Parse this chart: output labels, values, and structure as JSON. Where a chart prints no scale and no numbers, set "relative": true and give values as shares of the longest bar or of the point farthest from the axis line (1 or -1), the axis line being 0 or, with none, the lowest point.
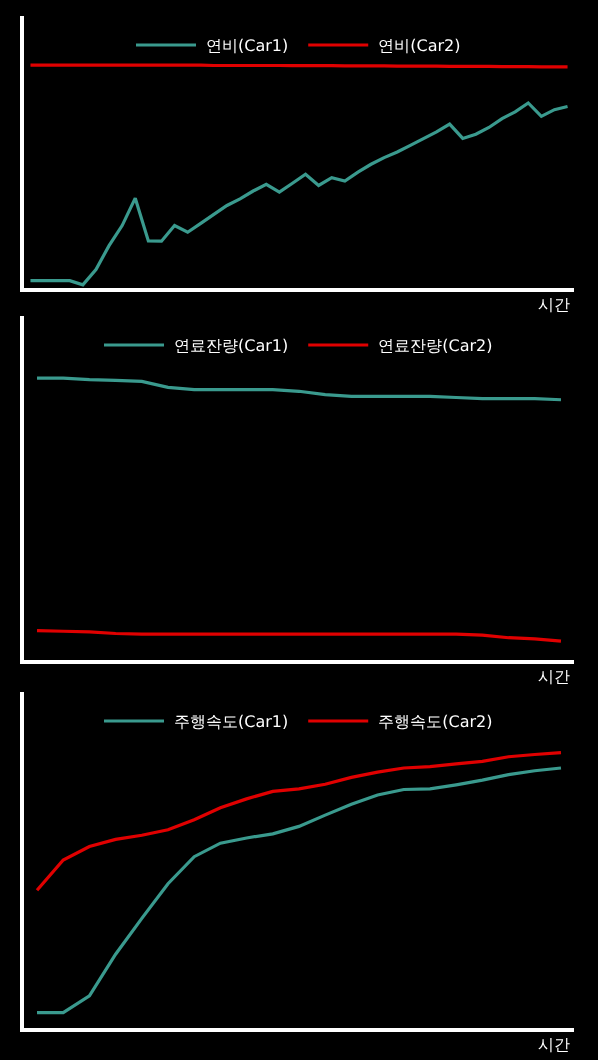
{
  "chart_data": [
    {
      "type": "line",
      "relative": true,
      "xlabel": "시간",
      "legend": "top",
      "grid": false,
      "marker": "none",
      "line_style": "solid",
      "categories": [
        null,
        null,
        null,
        null,
        null,
        null,
        null,
        null,
        null,
        null,
        null,
        null,
        null,
        null,
        null,
        null,
        null,
        null,
        null,
        null,
        null,
        null,
        null,
        null,
        null,
        null,
        null,
        null,
        null,
        null,
        null,
        null,
        null,
        null,
        null,
        null,
        null,
        null,
        null,
        null,
        null,
        null
      ],
      "series": [
        {
          "name": "연비(Car1)",
          "color": "#3a9a8e",
          "values": [
            0.033,
            0.033,
            0.033,
            0.033,
            0.014,
            0.083,
            0.19,
            0.28,
            0.403,
            0.211,
            0.21,
            0.28,
            0.25,
            0.29,
            0.33,
            0.37,
            0.4,
            0.435,
            0.465,
            0.43,
            0.47,
            0.51,
            0.46,
            0.495,
            0.48,
            0.52,
            0.555,
            0.585,
            0.61,
            0.64,
            0.67,
            0.7,
            0.735,
            0.671,
            0.69,
            0.72,
            0.76,
            0.79,
            0.83,
            0.77,
            0.8,
            0.814
          ]
        },
        {
          "name": "연비(Car2)",
          "color": "#e00000",
          "values": [
            1.0,
            1.0,
            1.0,
            1.0,
            1.0,
            1.0,
            1.0,
            1.0,
            1.0,
            1.0,
            1.0,
            1.0,
            1.0,
            1.0,
            0.998,
            0.998,
            0.998,
            0.998,
            0.998,
            0.998,
            0.997,
            0.997,
            0.997,
            0.997,
            0.996,
            0.996,
            0.996,
            0.996,
            0.995,
            0.995,
            0.995,
            0.995,
            0.994,
            0.994,
            0.994,
            0.994,
            0.993,
            0.993,
            0.993,
            0.992,
            0.992,
            0.992
          ]
        }
      ]
    },
    {
      "type": "line",
      "relative": true,
      "xlabel": "시간",
      "legend": "top",
      "grid": false,
      "marker": "none",
      "line_style": "solid",
      "categories": [
        null,
        null,
        null,
        null,
        null,
        null,
        null,
        null,
        null,
        null,
        null,
        null,
        null,
        null,
        null,
        null,
        null,
        null,
        null,
        null,
        null
      ],
      "series": [
        {
          "name": "연료잔량(Car1)",
          "color": "#3a9a8e",
          "values": [
            1.0,
            1.0,
            0.994,
            0.992,
            0.988,
            0.967,
            0.959,
            0.959,
            0.959,
            0.959,
            0.953,
            0.941,
            0.935,
            0.935,
            0.935,
            0.935,
            0.931,
            0.927,
            0.927,
            0.927,
            0.923
          ]
        },
        {
          "name": "연료잔량(Car2)",
          "color": "#e00000",
          "values": [
            0.104,
            0.102,
            0.1,
            0.094,
            0.092,
            0.092,
            0.092,
            0.092,
            0.092,
            0.092,
            0.092,
            0.092,
            0.092,
            0.092,
            0.092,
            0.092,
            0.092,
            0.088,
            0.079,
            0.075,
            0.067
          ]
        }
      ]
    },
    {
      "type": "line",
      "relative": true,
      "xlabel": "시간",
      "legend": "top",
      "grid": false,
      "marker": "none",
      "line_style": "solid",
      "categories": [
        null,
        null,
        null,
        null,
        null,
        null,
        null,
        null,
        null,
        null,
        null,
        null,
        null,
        null,
        null,
        null,
        null,
        null,
        null,
        null,
        null
      ],
      "series": [
        {
          "name": "주행속도(Car1)",
          "color": "#3a9a8e",
          "values": [
            0.056,
            0.056,
            0.117,
            0.268,
            0.398,
            0.524,
            0.622,
            0.671,
            0.69,
            0.705,
            0.732,
            0.773,
            0.812,
            0.846,
            0.866,
            0.868,
            0.883,
            0.9,
            0.92,
            0.934,
            0.944
          ]
        },
        {
          "name": "주행속도(Car2)",
          "color": "#e00000",
          "values": [
            0.5,
            0.61,
            0.659,
            0.685,
            0.7,
            0.72,
            0.756,
            0.8,
            0.832,
            0.859,
            0.868,
            0.885,
            0.91,
            0.929,
            0.944,
            0.949,
            0.959,
            0.968,
            0.985,
            0.993,
            1.0
          ]
        }
      ]
    }
  ]
}
